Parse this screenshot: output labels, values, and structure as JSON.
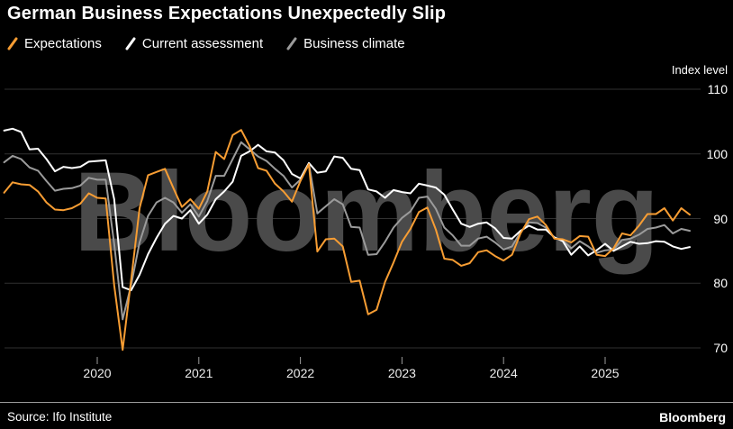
{
  "header": {
    "title": "German Business Expectations Unexpectedly Slip"
  },
  "legend": [
    {
      "label": "Expectations",
      "color": "#f79d33"
    },
    {
      "label": "Current assessment",
      "color": "#ffffff"
    },
    {
      "label": "Business climate",
      "color": "#9b9b9b"
    }
  ],
  "axis": {
    "unit_label": "Index level",
    "y_ticks": [
      110,
      100,
      90,
      80,
      70
    ],
    "x_ticks": [
      "2020",
      "2021",
      "2022",
      "2023",
      "2024",
      "2025"
    ]
  },
  "watermark": "Bloomberg",
  "footer": {
    "source": "Source: Ifo Institute",
    "brand": "Bloomberg"
  },
  "chart_data": {
    "type": "line",
    "title": "German Business Expectations Unexpectedly Slip",
    "xlabel": "",
    "ylabel": "Index level",
    "ylim": [
      65,
      112
    ],
    "x_start": "2019-02",
    "x_end": "2025-11",
    "frequency": "monthly",
    "grid": "horizontal",
    "legend_position": "top-left",
    "series": [
      {
        "name": "Expectations",
        "color": "#f79d33",
        "values": [
          94.0,
          95.6,
          95.3,
          95.2,
          94.2,
          92.5,
          91.4,
          91.3,
          91.6,
          92.3,
          93.9,
          93.2,
          93.1,
          79.7,
          69.7,
          80.5,
          91.6,
          96.7,
          97.2,
          97.7,
          94.7,
          91.8,
          93.0,
          91.5,
          94.2,
          100.3,
          99.2,
          102.9,
          103.7,
          101.2,
          97.8,
          97.4,
          95.4,
          94.2,
          92.6,
          95.8,
          98.4,
          84.9,
          86.8,
          86.9,
          85.7,
          80.2,
          80.4,
          75.2,
          75.9,
          80.2,
          83.2,
          86.4,
          88.4,
          91.0,
          91.7,
          88.3,
          83.8,
          83.6,
          82.7,
          83.1,
          84.8,
          85.1,
          84.2,
          83.5,
          84.4,
          87.7,
          89.9,
          90.3,
          89.0,
          86.9,
          86.8,
          86.3,
          87.3,
          87.2,
          84.4,
          84.2,
          85.4,
          87.7,
          87.4,
          88.9,
          90.7,
          90.7,
          91.6,
          89.7,
          91.6,
          90.6
        ]
      },
      {
        "name": "Current assessment",
        "color": "#ffffff",
        "values": [
          103.6,
          103.9,
          103.4,
          100.7,
          100.8,
          99.2,
          97.3,
          98.0,
          97.8,
          98.0,
          98.8,
          98.9,
          99.0,
          93.0,
          79.4,
          78.9,
          81.3,
          84.5,
          87.0,
          89.2,
          90.4,
          90.0,
          91.3,
          89.2,
          90.6,
          93.0,
          94.2,
          95.7,
          99.7,
          100.4,
          101.4,
          100.4,
          100.2,
          99.0,
          96.9,
          96.2,
          98.6,
          97.1,
          97.3,
          99.6,
          99.4,
          97.7,
          97.5,
          94.5,
          94.2,
          93.2,
          94.4,
          94.1,
          93.9,
          95.4,
          95.1,
          94.8,
          93.7,
          91.4,
          89.2,
          88.7,
          89.2,
          89.4,
          88.5,
          87.0,
          86.9,
          88.1,
          88.9,
          88.3,
          88.3,
          87.1,
          86.5,
          84.4,
          85.7,
          84.3,
          85.1,
          86.1,
          85.0,
          85.7,
          86.4,
          86.1,
          86.2,
          86.5,
          86.4,
          85.7,
          85.3,
          85.6
        ]
      },
      {
        "name": "Business climate",
        "color": "#9b9b9b",
        "values": [
          98.7,
          99.7,
          99.2,
          97.9,
          97.4,
          95.8,
          94.3,
          94.6,
          94.7,
          95.1,
          96.3,
          96.0,
          96.0,
          86.1,
          74.4,
          79.7,
          86.3,
          90.4,
          92.5,
          93.2,
          92.5,
          90.9,
          92.2,
          90.3,
          92.7,
          96.6,
          96.6,
          99.2,
          101.8,
          100.7,
          99.6,
          98.9,
          97.7,
          96.6,
          94.8,
          96.0,
          98.5,
          90.8,
          91.9,
          93.0,
          92.2,
          88.7,
          88.6,
          84.4,
          84.5,
          86.4,
          88.6,
          90.1,
          91.1,
          93.2,
          93.4,
          91.5,
          88.6,
          87.4,
          85.8,
          85.8,
          86.9,
          87.2,
          86.3,
          85.2,
          85.7,
          87.9,
          89.4,
          89.3,
          88.6,
          87.0,
          86.6,
          85.4,
          86.5,
          85.7,
          84.7,
          85.1,
          85.2,
          86.7,
          86.9,
          87.5,
          88.4,
          88.6,
          89.0,
          87.7,
          88.4,
          88.1
        ]
      }
    ]
  }
}
